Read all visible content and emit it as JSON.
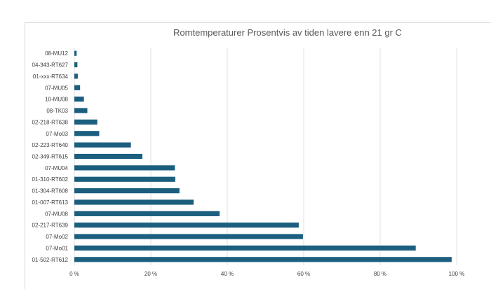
{
  "chart_data": {
    "type": "bar",
    "orientation": "horizontal",
    "title": "Romtemperaturer Prosentvis av tiden lavere enn 21 gr C",
    "xlabel": "",
    "ylabel": "",
    "categories": [
      "08-MU12",
      "04-343-RT627",
      "01-xxx-RT634",
      "07-MU05",
      "10-MU08",
      "08-TK03",
      "02-218-RT638",
      "07-Mo03",
      "02-223-RT640",
      "02-349-RT615",
      "07-MU04",
      "01-310-RT602",
      "01-304-RT608",
      "01-007-RT613",
      "07-MU08",
      "02-217-RT639",
      "07-Mo02",
      "07-Mo01",
      "01-502-RT612"
    ],
    "values": [
      0.6,
      0.8,
      0.9,
      1.5,
      2.5,
      3.4,
      6.0,
      6.5,
      14.8,
      17.8,
      26.3,
      26.4,
      27.5,
      31.2,
      38.0,
      58.7,
      59.8,
      89.3,
      98.7
    ],
    "xlim": [
      0,
      100
    ],
    "xticks": [
      0,
      20,
      40,
      60,
      80,
      100
    ],
    "xtick_labels": [
      "0 %",
      "20 %",
      "40 %",
      "60 %",
      "80 %",
      "100 %"
    ],
    "grid": "vertical",
    "legend": "none",
    "bar_color": "#1b5e7e"
  }
}
